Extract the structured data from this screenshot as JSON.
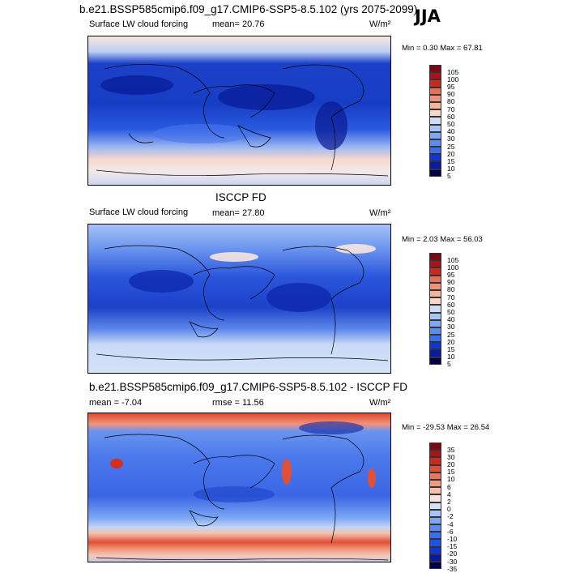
{
  "season": "JJA",
  "colors": {
    "blue_scale": [
      "#02024a",
      "#0a1a9e",
      "#1036d6",
      "#2152e6",
      "#3a6ef0",
      "#5a8cf2",
      "#7ea8f4",
      "#a6c4f7",
      "#cfdcf8",
      "#f4eef0",
      "#f9d4c8",
      "#f5b4a0",
      "#f0927a",
      "#e8705a",
      "#dc4a36",
      "#c82a20",
      "#a8141a",
      "#7a0a10"
    ],
    "diff_scale": [
      "#02024a",
      "#0a1a9e",
      "#1036d6",
      "#2152e6",
      "#3a6ef0",
      "#5a8cf2",
      "#7ea8f4",
      "#a6c4f7",
      "#d6e2f8",
      "#f8e4de",
      "#f5c0ac",
      "#f09a80",
      "#e8765e",
      "#dc5038",
      "#c82c20",
      "#a8141a",
      "#7a0a10"
    ]
  },
  "panels": [
    {
      "title": "b.e21.BSSP585cmip6.f09_g17.CMIP6-SSP5-8.5.102 (yrs 2075-2099)",
      "subtitle_left": "Surface LW cloud forcing",
      "stat_label": "mean=",
      "stat_value": "20.76",
      "units": "W/m²",
      "minmax": "Min =   0.30 Max =  67.81",
      "colorbar_labels": [
        "105",
        "100",
        "95",
        "90",
        "80",
        "70",
        "60",
        "50",
        "40",
        "30",
        "25",
        "20",
        "15",
        "10",
        "5"
      ]
    },
    {
      "title": "ISCCP FD",
      "subtitle_left": "Surface LW cloud forcing",
      "stat_label": "mean=",
      "stat_value": "27.80",
      "units": "W/m²",
      "minmax": "Min =   2.03 Max =  56.03",
      "colorbar_labels": [
        "105",
        "100",
        "95",
        "90",
        "80",
        "70",
        "60",
        "50",
        "40",
        "30",
        "25",
        "20",
        "15",
        "10",
        "5"
      ]
    },
    {
      "title": "b.e21.BSSP585cmip6.f09_g17.CMIP6-SSP5-8.5.102 - ISCCP FD",
      "subtitle_left": "mean =  -7.04",
      "stat_label": "rmse =",
      "stat_value": "11.56",
      "units": "W/m²",
      "minmax": "Min = -29.53 Max =  26.54",
      "colorbar_labels": [
        "35",
        "30",
        "20",
        "15",
        "10",
        "6",
        "4",
        "2",
        "0",
        "-2",
        "-4",
        "-6",
        "-10",
        "-15",
        "-20",
        "-30",
        "-35"
      ]
    }
  ]
}
